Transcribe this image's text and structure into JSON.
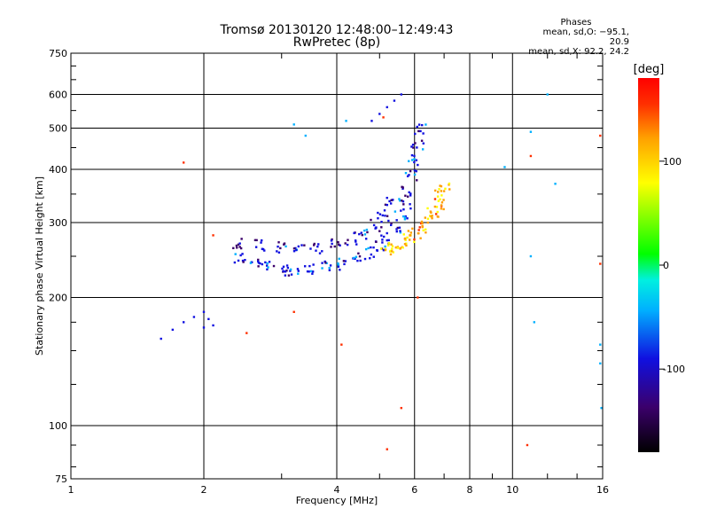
{
  "chart_data": {
    "type": "scatter",
    "title_line1": "Tromsø 20130120 12:48:00–12:49:43",
    "title_line2": "RwPretec (8p)",
    "xlabel": "Frequency [MHz]",
    "ylabel": "Stationary phase Virtual Height [km]",
    "x_scale": "log",
    "y_scale": "log",
    "xlim": [
      1,
      16
    ],
    "ylim": [
      75,
      750
    ],
    "x_ticks": [
      1,
      2,
      4,
      6,
      8,
      10,
      16
    ],
    "x_tick_labels": [
      "1",
      "2",
      "4",
      "6",
      "8",
      "10",
      "16"
    ],
    "x_minor_ticks": [
      3,
      5,
      7,
      9,
      12,
      14
    ],
    "y_ticks": [
      75,
      100,
      200,
      300,
      400,
      500,
      600,
      750
    ],
    "y_tick_labels": [
      "75",
      "100",
      "200",
      "300",
      "400",
      "500",
      "600",
      "750"
    ],
    "y_minor_ticks": [
      80,
      90,
      125,
      150,
      175,
      250,
      350,
      450,
      550,
      650,
      700
    ],
    "grid": true,
    "colorbar": {
      "title": "[deg]",
      "range": [
        -180,
        180
      ],
      "ticks": [
        100,
        0,
        -100
      ],
      "tick_labels": [
        "100",
        "0",
        "-100"
      ],
      "colors": [
        "#000000",
        "#3b006b",
        "#1010e0",
        "#00b0ff",
        "#00f0e0",
        "#00ff00",
        "#ffff00",
        "#ffa000",
        "#ff3000",
        "#ff0000"
      ]
    },
    "phases": {
      "heading": "Phases",
      "line_o": "mean, sd,O: −95.1, 20.9",
      "line_x": "mean, sd,X:  92.2, 24.2"
    },
    "series": [
      {
        "name": "O-trace",
        "color_phase": -100,
        "x": [
          2.4,
          2.6,
          2.8,
          3.0,
          3.2,
          3.5,
          3.8,
          4.1,
          4.4,
          4.7,
          5.0,
          5.2,
          5.4,
          5.6,
          5.7,
          5.8,
          5.9,
          6.0,
          6.1,
          6.2
        ],
        "y": [
          248,
          240,
          236,
          233,
          232,
          233,
          235,
          240,
          246,
          254,
          264,
          275,
          290,
          310,
          330,
          355,
          385,
          420,
          460,
          500
        ]
      },
      {
        "name": "X-trace",
        "color_phase": 90,
        "x": [
          5.2,
          5.4,
          5.6,
          5.8,
          6.0,
          6.2,
          6.4,
          6.6,
          6.8,
          6.9,
          7.0
        ],
        "y": [
          258,
          262,
          268,
          275,
          283,
          292,
          302,
          315,
          330,
          345,
          360
        ]
      },
      {
        "name": "upper-spread",
        "color_phase": -110,
        "x": [
          2.4,
          2.7,
          3.0,
          3.3,
          3.6,
          4.0,
          4.3,
          4.6,
          4.9,
          5.1,
          5.3
        ],
        "y": [
          268,
          264,
          262,
          260,
          262,
          268,
          275,
          283,
          295,
          310,
          340
        ]
      },
      {
        "name": "low-cluster",
        "color_phase": -110,
        "x": [
          1.6,
          1.7,
          1.8,
          1.9,
          2.0,
          2.0,
          2.05,
          2.1
        ],
        "y": [
          160,
          168,
          175,
          180,
          185,
          170,
          178,
          172
        ]
      },
      {
        "name": "top-branch",
        "color_phase": -100,
        "x": [
          4.8,
          5.0,
          5.2,
          5.4,
          5.6
        ],
        "y": [
          520,
          540,
          560,
          580,
          600
        ]
      },
      {
        "name": "scattered",
        "color_phase": -80,
        "x": [
          3.2,
          3.4,
          4.2,
          9.6,
          11.0,
          12.0,
          12.5,
          11.2,
          15.8,
          15.9,
          11.0,
          15.8
        ],
        "y": [
          510,
          480,
          520,
          405,
          490,
          600,
          370,
          175,
          140,
          110,
          250,
          155
        ]
      },
      {
        "name": "scattered-warm",
        "color_phase": 120,
        "x": [
          1.8,
          2.1,
          2.5,
          3.2,
          4.1,
          5.1,
          5.2,
          5.6,
          6.1,
          10.8,
          11.0,
          15.8,
          15.8
        ],
        "y": [
          415,
          280,
          165,
          185,
          155,
          530,
          88,
          110,
          200,
          90,
          430,
          240,
          480
        ]
      }
    ]
  }
}
